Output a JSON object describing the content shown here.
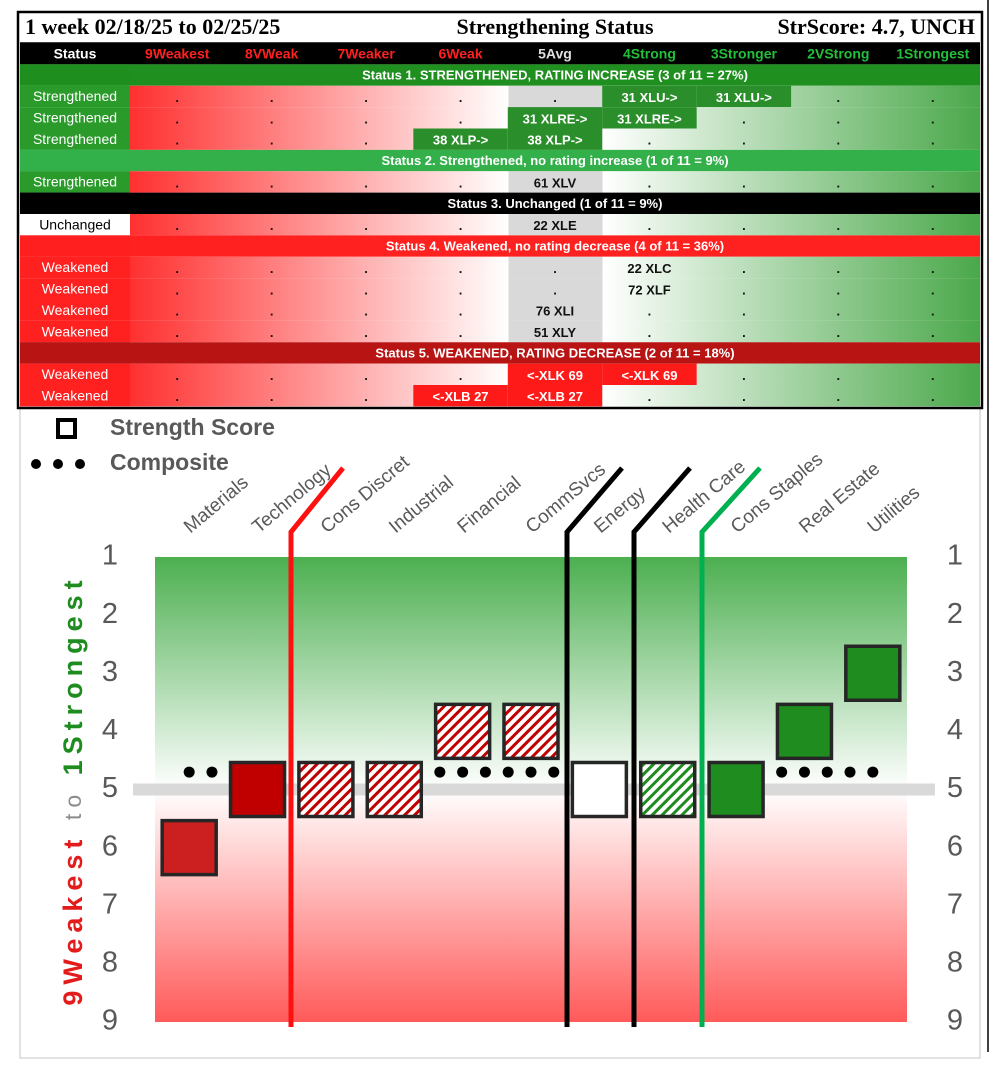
{
  "table": {
    "title_left": "1 week 02/18/25 to 02/25/25",
    "title_center": "Strengthening Status",
    "title_right": "StrScore: 4.7, UNCH",
    "columns": [
      "Status",
      "9Weakest",
      "8VWeak",
      "7Weaker",
      "6Weak",
      "5Avg",
      "4Strong",
      "3Stronger",
      "2VStrong",
      "1Strongest"
    ],
    "column_colors": [
      "#ffffff",
      "#ff2020",
      "#ff2020",
      "#ff2020",
      "#ff2020",
      "#e0e0e0",
      "#22c03a",
      "#22c03a",
      "#22c03a",
      "#22c03a"
    ],
    "groups": [
      {
        "heading": "Status 1. STRENGTHENED, RATING INCREASE (3 of 11 = 27%)",
        "color": "#1f8f1f",
        "status_color": "#2a9a2a",
        "highlight": "#2a8f2a",
        "rows": [
          {
            "status": "Strengthened",
            "cells": [
              ".",
              ".",
              ".",
              ".",
              ".",
              "31 XLU->",
              "31 XLU->",
              ".",
              "."
            ]
          },
          {
            "status": "Strengthened",
            "cells": [
              ".",
              ".",
              ".",
              ".",
              "31 XLRE->",
              "31 XLRE->",
              ".",
              ".",
              "."
            ]
          },
          {
            "status": "Strengthened",
            "cells": [
              ".",
              ".",
              ".",
              "38 XLP->",
              "38 XLP->",
              ".",
              ".",
              ".",
              "."
            ]
          }
        ]
      },
      {
        "heading": "Status 2. Strengthened, no rating increase (1 of 11 = 9%)",
        "color": "#33b04a",
        "status_color": "#2a9a2a",
        "rows": [
          {
            "status": "Strengthened",
            "cells": [
              ".",
              ".",
              ".",
              ".",
              "61 XLV",
              ".",
              ".",
              ".",
              "."
            ]
          }
        ]
      },
      {
        "heading": "Status 3. Unchanged (1 of 11 = 9%)",
        "color": "#000000",
        "status_color": "#ffffff",
        "rows": [
          {
            "status": "Unchanged",
            "cells": [
              ".",
              ".",
              ".",
              ".",
              "22 XLE",
              ".",
              ".",
              ".",
              "."
            ]
          }
        ]
      },
      {
        "heading": "Status 4. Weakened, no rating decrease (4 of 11 = 36%)",
        "color": "#ff2020",
        "status_color": "#ff2020",
        "rows": [
          {
            "status": "Weakened",
            "cells": [
              ".",
              ".",
              ".",
              ".",
              ".",
              "22 XLC",
              ".",
              ".",
              "."
            ]
          },
          {
            "status": "Weakened",
            "cells": [
              ".",
              ".",
              ".",
              ".",
              ".",
              "72 XLF",
              ".",
              ".",
              "."
            ]
          },
          {
            "status": "Weakened",
            "cells": [
              ".",
              ".",
              ".",
              ".",
              "76 XLI",
              ".",
              ".",
              ".",
              "."
            ]
          },
          {
            "status": "Weakened",
            "cells": [
              ".",
              ".",
              ".",
              ".",
              "51 XLY",
              ".",
              ".",
              ".",
              "."
            ]
          }
        ]
      },
      {
        "heading": "Status 5. WEAKENED, RATING DECREASE (2 of 11 = 18%)",
        "color": "#b81414",
        "status_color": "#ff2020",
        "highlight": "#ff1a1a",
        "rows": [
          {
            "status": "Weakened",
            "cells": [
              ".",
              ".",
              ".",
              ".",
              "<-XLK 69",
              "<-XLK 69",
              ".",
              ".",
              "."
            ]
          },
          {
            "status": "Weakened",
            "cells": [
              ".",
              ".",
              ".",
              "<-XLB 27",
              "<-XLB 27",
              ".",
              ".",
              ".",
              "."
            ]
          }
        ]
      }
    ]
  },
  "chart_data": {
    "type": "scatter",
    "categories": [
      "Materials",
      "Technology",
      "Cons Discret",
      "Industrial",
      "Financial",
      "CommSvcs",
      "Energy",
      "Health Care",
      "Cons Staples",
      "Real Estate",
      "Utilities"
    ],
    "series": [
      {
        "name": "Strength Score",
        "values": [
          6,
          5,
          5,
          5,
          4,
          4,
          5,
          5,
          5,
          4,
          3
        ],
        "colors": [
          "#cc1f1f",
          "#c00000",
          "#c00000",
          "#c00000",
          "#c00000",
          "#c00000",
          "#ffffff",
          "#1e8c1e",
          "#1e8c1e",
          "#1e8c1e",
          "#1e8c1e"
        ],
        "fills": [
          "solid",
          "solid",
          "hatch",
          "hatch",
          "hatch",
          "hatch",
          "solid",
          "hatch",
          "solid",
          "solid",
          "solid"
        ]
      }
    ],
    "composite": {
      "name": "Composite",
      "value": 4.7,
      "color": "#000000"
    },
    "baseline": 5,
    "ylabel_parts": [
      "9Weakest",
      "to",
      "1Strongest"
    ],
    "ylabel_colors": [
      "#e31b1b",
      "#8c8c8c",
      "#1e8c1e"
    ],
    "ylim": [
      1,
      9
    ],
    "yticks": [
      1,
      2,
      3,
      4,
      5,
      6,
      7,
      8,
      9
    ]
  }
}
